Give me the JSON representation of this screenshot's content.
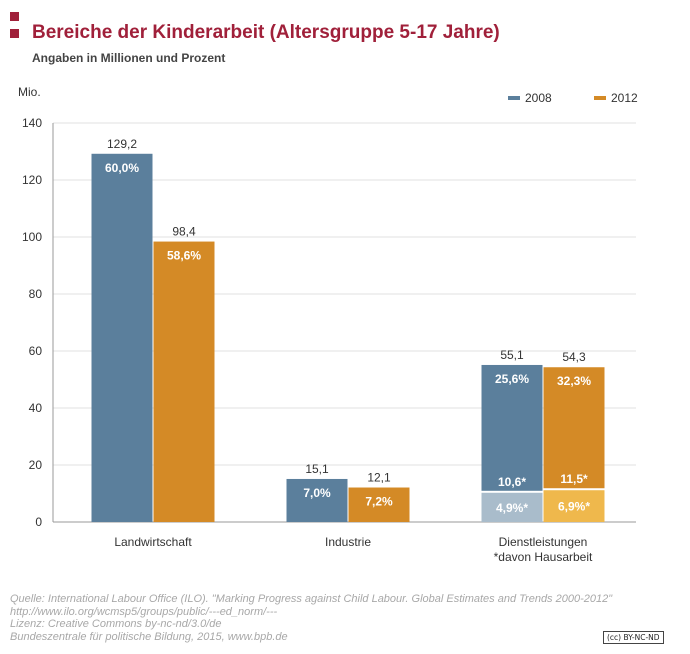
{
  "title": "Bereiche der Kinderarbeit (Altersgruppe 5-17 Jahre)",
  "subtitle": "Angaben in Millionen und Prozent",
  "chart_data": {
    "type": "bar",
    "title": "Bereiche der Kinderarbeit (Altersgruppe 5-17 Jahre)",
    "subtitle": "Angaben in Millionen und Prozent",
    "ylabel": "Mio.",
    "ylim": [
      0,
      140
    ],
    "yticks": [
      0,
      20,
      40,
      60,
      80,
      100,
      120,
      140
    ],
    "grid": true,
    "legend_position": "top-right",
    "categories": [
      "Landwirtschaft",
      "Industrie",
      "Dienstleistungen"
    ],
    "category_sublabels": [
      "",
      "",
      "*davon Hausarbeit"
    ],
    "series": [
      {
        "name": "2008",
        "color": "#5b7f9c",
        "light_color": "#a9bccb",
        "values": [
          129.2,
          15.1,
          55.1
        ],
        "value_labels": [
          "129,2",
          "15,1",
          "55,1"
        ],
        "percent_labels": [
          "60,0%",
          "7,0%",
          "25,6%"
        ],
        "sub_values": [
          null,
          null,
          10.6
        ],
        "sub_value_labels": [
          null,
          null,
          "10,6*"
        ],
        "sub_percent_labels": [
          null,
          null,
          "4,9%*"
        ]
      },
      {
        "name": "2012",
        "color": "#d48a26",
        "light_color": "#efb84c",
        "values": [
          98.4,
          12.1,
          54.3
        ],
        "value_labels": [
          "98,4",
          "12,1",
          "54,3"
        ],
        "percent_labels": [
          "58,6%",
          "7,2%",
          "32,3%"
        ],
        "sub_values": [
          null,
          null,
          11.5
        ],
        "sub_value_labels": [
          null,
          null,
          "11,5*"
        ],
        "sub_percent_labels": [
          null,
          null,
          "6,9%*"
        ]
      }
    ]
  },
  "source": {
    "lines": [
      "Quelle: International Labour Office (ILO). \"Marking Progress against Child Labour. Global Estimates and Trends 2000-2012\"",
      "http://www.ilo.org/wcmsp5/groups/public/---ed_norm/---",
      "Lizenz: Creative Commons by-nc-nd/3.0/de",
      "Bundeszentrale für politische Bildung, 2015, www.bpb.de"
    ]
  },
  "license_badge": "(cc) BY-NC-ND",
  "colors": {
    "title": "#a0203a",
    "grid": "#e2e2e2"
  }
}
